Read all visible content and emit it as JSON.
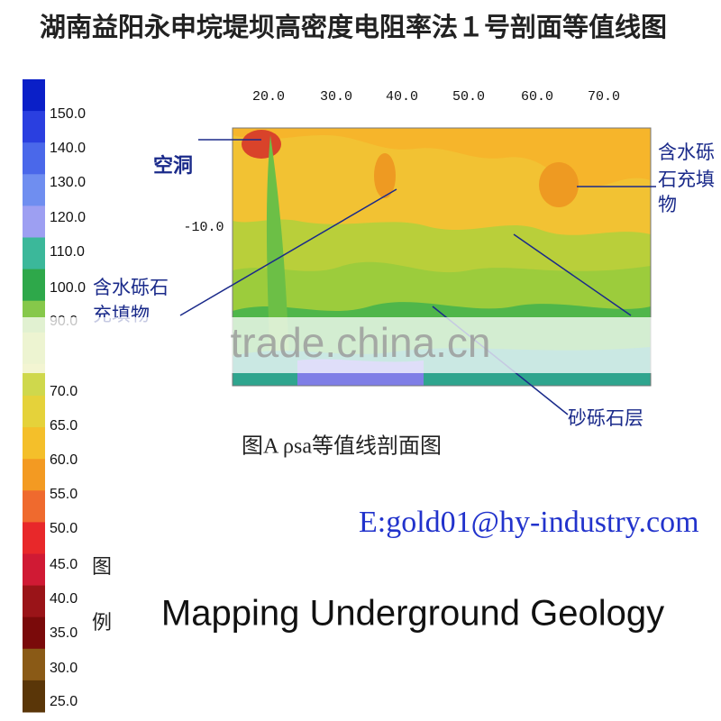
{
  "title": "湖南益阳永申垸堤坝高密度电阻率法１号剖面等值线图",
  "legend": {
    "caption": "图例",
    "labels": [
      "150.0",
      "140.0",
      "130.0",
      "120.0",
      "110.0",
      "100.0",
      "90.0",
      "70.0",
      "65.0",
      "60.0",
      "55.0",
      "50.0",
      "45.0",
      "40.0",
      "35.0",
      "30.0",
      "25.0"
    ]
  },
  "profile": {
    "x_ticks": [
      "20.0",
      "30.0",
      "40.0",
      "50.0",
      "60.0",
      "70.0"
    ],
    "y_ticks": [
      "-10.0"
    ],
    "annotations": {
      "cavity": "空洞",
      "gravel_fill_right": [
        "含水砾",
        "石充填",
        "物"
      ],
      "gravel_fill_left": [
        "含水砾石",
        "充填物"
      ],
      "sandy_gravel": "砂砾石层"
    },
    "caption": "图A  ρsa等值线剖面图"
  },
  "email": "E:gold01@hy-industry.com",
  "subtitle": "Mapping Underground Geology",
  "watermark": "trade.china.cn"
}
